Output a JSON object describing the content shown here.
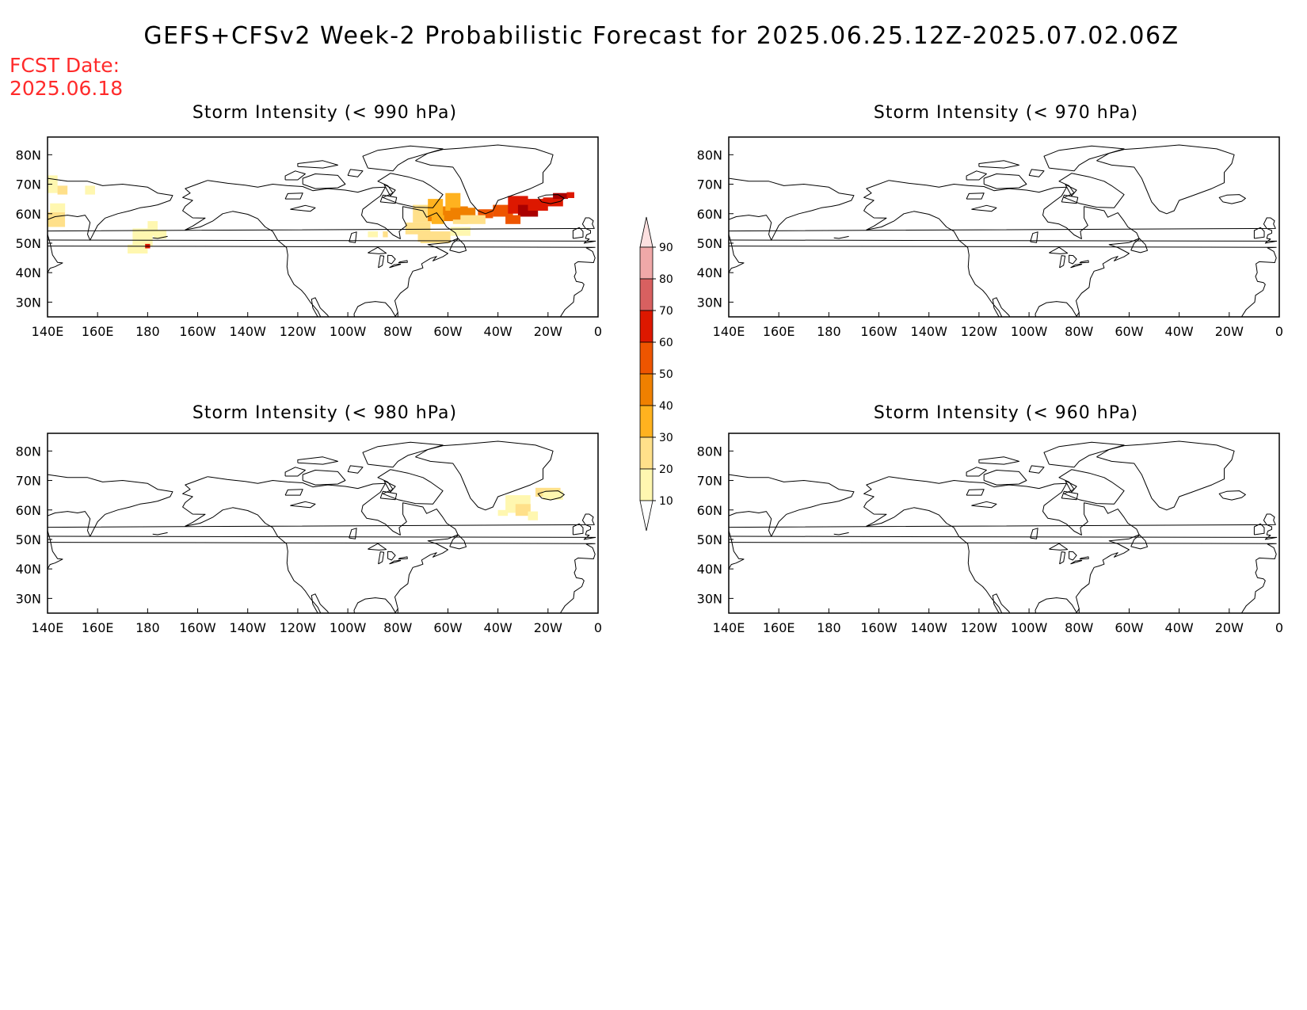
{
  "title": "GEFS+CFSv2 Week-2 Probabilistic Forecast for 2025.06.25.12Z-2025.07.02.06Z",
  "fcst_date": {
    "label": "FCST Date:",
    "value": "2025.06.18"
  },
  "lon_ticks": [
    "140E",
    "160E",
    "180",
    "160W",
    "140W",
    "120W",
    "100W",
    "80W",
    "60W",
    "40W",
    "20W",
    "0"
  ],
  "lat_ticks": [
    "80N",
    "70N",
    "60N",
    "50N",
    "40N",
    "30N"
  ],
  "panels": [
    {
      "id": "p990",
      "title": "Storm Intensity (< 990 hPa)"
    },
    {
      "id": "p970",
      "title": "Storm Intensity (< 970 hPa)"
    },
    {
      "id": "p980",
      "title": "Storm Intensity (< 980 hPa)"
    },
    {
      "id": "p960",
      "title": "Storm Intensity (< 960 hPa)"
    }
  ],
  "colorbar": {
    "labels": [
      "10",
      "20",
      "30",
      "40",
      "50",
      "60",
      "70",
      "80",
      "90"
    ],
    "colors": [
      "#fff7b0",
      "#ffe08a",
      "#ffb21f",
      "#f08000",
      "#ee5500",
      "#dd1800",
      "#aa0000",
      "#d86060",
      "#f0a8a8",
      "#fde0e0"
    ]
  },
  "probability_regions": {
    "p990": [
      {
        "lon": 142,
        "lat": 68,
        "prob": "10-20"
      },
      {
        "lon": 148,
        "lat": 57,
        "prob": "10-20"
      },
      {
        "lon": 180,
        "lat": 49,
        "prob": "40-60"
      },
      {
        "lon": -60,
        "lat": 63,
        "prob": "30-40"
      },
      {
        "lon": -30,
        "lat": 62,
        "prob": "50-70"
      },
      {
        "lon": -12,
        "lat": 66,
        "prob": "50-60"
      }
    ],
    "p980": [
      {
        "lon": -30,
        "lat": 62,
        "prob": "10-20"
      },
      {
        "lon": -18,
        "lat": 66,
        "prob": "10-20"
      }
    ],
    "p970": [],
    "p960": []
  }
}
